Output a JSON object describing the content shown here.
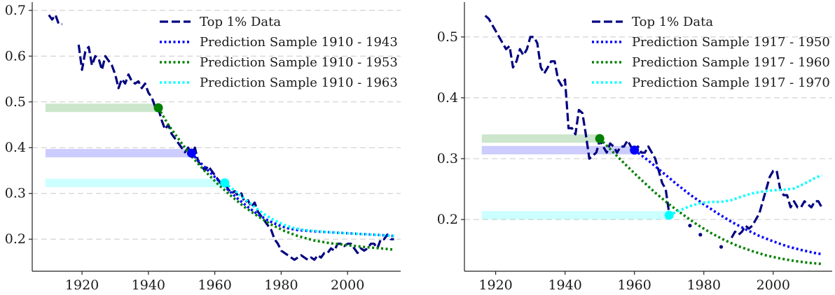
{
  "chart_data": [
    {
      "type": "line",
      "title": "",
      "xlabel": "",
      "ylabel": "",
      "xlim": [
        1905,
        2016
      ],
      "ylim": [
        0.13,
        0.715
      ],
      "xticks": [
        1920,
        1940,
        1960,
        1980,
        2000
      ],
      "yticks": [
        0.2,
        0.3,
        0.4,
        0.5,
        0.6,
        0.7
      ],
      "xtick_labels": [
        "1920",
        "1940",
        "1960",
        "1980",
        "2000"
      ],
      "ytick_labels": [
        "0.2",
        "0.3",
        "0.4",
        "0.5",
        "0.6",
        "0.7"
      ],
      "grid": "horizontal dashed",
      "legend_position": "top-right",
      "series": [
        {
          "name": "Top 1% Data",
          "style": "dashed",
          "color": "#000080",
          "x": [
            1910,
            1911,
            1912,
            1913,
            1914,
            null,
            1919,
            1920,
            1921,
            1922,
            1923,
            1924,
            1925,
            1926,
            1927,
            1928,
            1929,
            1930,
            1931,
            1932,
            1933,
            1934,
            1935,
            1936,
            1937,
            1938,
            1939,
            1940,
            1941,
            1942,
            1943,
            1944,
            1945,
            1946,
            1947,
            1948,
            1949,
            1950,
            1951,
            1952,
            1953,
            1954,
            1955,
            1956,
            1957,
            1958,
            1959,
            1960,
            1961,
            1962,
            1963,
            1964,
            1965,
            1966,
            1967,
            1968,
            1969,
            1970,
            1971,
            1972,
            1973,
            1974,
            1975,
            1976,
            1977,
            1978,
            1979,
            1980,
            1981,
            1982,
            1983,
            1984,
            1985,
            1986,
            1987,
            1988,
            1989,
            1990,
            1991,
            1992,
            1993,
            1994,
            1995,
            1996,
            1997,
            1998,
            1999,
            2000,
            2001,
            2002,
            2003,
            2004,
            2005,
            2006,
            2007,
            2008,
            2009,
            2010,
            2011,
            2012,
            2013,
            2014
          ],
          "y": [
            0.69,
            0.68,
            0.69,
            0.67,
            0.67,
            null,
            0.625,
            0.57,
            0.61,
            0.62,
            0.58,
            0.6,
            0.595,
            0.57,
            0.6,
            0.59,
            0.58,
            0.56,
            0.53,
            0.55,
            0.54,
            0.56,
            0.545,
            0.54,
            0.545,
            0.53,
            0.54,
            0.52,
            0.51,
            0.49,
            0.485,
            0.46,
            0.44,
            0.45,
            0.43,
            0.42,
            0.41,
            0.4,
            0.39,
            0.4,
            0.38,
            0.4,
            0.37,
            0.36,
            0.35,
            0.36,
            0.35,
            0.34,
            0.33,
            0.32,
            0.32,
            0.31,
            0.3,
            0.305,
            0.295,
            0.3,
            0.28,
            0.285,
            0.27,
            0.28,
            0.26,
            0.25,
            0.24,
            0.23,
            0.22,
            0.2,
            0.19,
            0.175,
            0.17,
            0.165,
            0.16,
            0.155,
            0.16,
            0.165,
            0.16,
            0.155,
            0.16,
            0.155,
            0.165,
            0.16,
            0.17,
            0.17,
            0.18,
            0.175,
            0.19,
            0.19,
            0.185,
            0.19,
            0.19,
            0.18,
            0.17,
            0.18,
            0.175,
            0.18,
            0.19,
            0.19,
            0.18,
            0.2,
            0.2,
            0.21,
            0.2,
            0.2
          ]
        },
        {
          "name": "Prediction Sample 1910 - 1943",
          "style": "dotted",
          "color": "#0000ff",
          "x": [
            1953,
            1955,
            1958,
            1961,
            1964,
            1967,
            1970,
            1973,
            1976,
            1979,
            1982,
            1985,
            1990,
            1995,
            2000,
            2005,
            2010,
            2014
          ],
          "y": [
            0.388,
            0.372,
            0.35,
            0.329,
            0.308,
            0.288,
            0.27,
            0.254,
            0.241,
            0.231,
            0.224,
            0.22,
            0.217,
            0.215,
            0.213,
            0.211,
            0.209,
            0.207
          ]
        },
        {
          "name": "Prediction Sample 1910 - 1953",
          "style": "dotted",
          "color": "#008000",
          "x": [
            1943,
            1946,
            1950,
            1953,
            1957,
            1961,
            1965,
            1969,
            1973,
            1977,
            1981,
            1985,
            1990,
            1995,
            2000,
            2005,
            2010,
            2014
          ],
          "y": [
            0.487,
            0.45,
            0.41,
            0.381,
            0.349,
            0.32,
            0.294,
            0.27,
            0.25,
            0.232,
            0.218,
            0.207,
            0.197,
            0.191,
            0.187,
            0.183,
            0.18,
            0.177
          ]
        },
        {
          "name": "Prediction Sample 1910 - 1963",
          "style": "dotted",
          "color": "#00ffff",
          "x": [
            1963,
            1966,
            1969,
            1972,
            1975,
            1978,
            1981,
            1984,
            1987,
            1990,
            1995,
            2000,
            2005,
            2010,
            2014
          ],
          "y": [
            0.323,
            0.306,
            0.288,
            0.27,
            0.254,
            0.241,
            0.231,
            0.224,
            0.22,
            0.218,
            0.215,
            0.213,
            0.211,
            0.209,
            0.207
          ]
        }
      ],
      "markers": [
        {
          "x": 1943,
          "y": 0.487,
          "color": "#008000"
        },
        {
          "x": 1953,
          "y": 0.388,
          "color": "#0000ff"
        },
        {
          "x": 1963,
          "y": 0.323,
          "color": "#00ffff"
        }
      ],
      "bands": [
        {
          "x_from": 1909,
          "x_to": 1943,
          "y": 0.487,
          "color": "#008000"
        },
        {
          "x_from": 1909,
          "x_to": 1953,
          "y": 0.388,
          "color": "#0000ff"
        },
        {
          "x_from": 1909,
          "x_to": 1963,
          "y": 0.323,
          "color": "#00ffff"
        }
      ]
    },
    {
      "type": "line",
      "title": "",
      "xlabel": "",
      "ylabel": "",
      "xlim": [
        1911,
        2017
      ],
      "ylim": [
        0.115,
        0.555
      ],
      "xticks": [
        1920,
        1940,
        1960,
        1980,
        2000
      ],
      "yticks": [
        0.2,
        0.3,
        0.4,
        0.5
      ],
      "xtick_labels": [
        "1920",
        "1940",
        "1960",
        "1980",
        "2000"
      ],
      "ytick_labels": [
        "0.2",
        "0.3",
        "0.4",
        "0.5"
      ],
      "grid": "horizontal dashed",
      "legend_position": "top-right",
      "series": [
        {
          "name": "Top 1% Data",
          "style": "dashed",
          "color": "#000080",
          "x": [
            1917,
            1918,
            1919,
            1920,
            1921,
            1922,
            1923,
            1924,
            1925,
            1926,
            1927,
            1928,
            1929,
            1930,
            1931,
            1932,
            1933,
            1934,
            1935,
            1936,
            1937,
            1938,
            1939,
            1940,
            1941,
            1942,
            1943,
            1944,
            1945,
            1946,
            1947,
            1948,
            1949,
            1950,
            1951,
            1952,
            1953,
            1954,
            1955,
            1956,
            1957,
            1958,
            1959,
            1960,
            1961,
            1962,
            1963,
            1964,
            1965,
            1966,
            1967,
            1968,
            1969,
            1970,
            null,
            1976,
            null,
            1979,
            null,
            1985,
            null,
            1988,
            1989,
            1990,
            1991,
            1992,
            1993,
            1994,
            1995,
            1996,
            1997,
            1998,
            1999,
            2000,
            2001,
            2002,
            2003,
            2004,
            2005,
            2006,
            2007,
            2008,
            2009,
            2010,
            2011,
            2012,
            2013,
            2014
          ],
          "y": [
            0.535,
            0.53,
            0.52,
            0.51,
            0.5,
            0.49,
            0.48,
            0.485,
            0.45,
            0.46,
            0.48,
            0.47,
            0.48,
            0.5,
            0.5,
            0.49,
            0.45,
            0.44,
            0.45,
            0.46,
            0.46,
            0.43,
            0.42,
            0.43,
            0.35,
            0.35,
            0.34,
            0.38,
            0.375,
            0.34,
            0.3,
            0.305,
            0.31,
            0.33,
            0.32,
            0.31,
            0.325,
            0.32,
            0.31,
            0.32,
            0.32,
            0.33,
            0.32,
            0.31,
            0.32,
            0.31,
            0.31,
            0.32,
            0.31,
            0.3,
            0.28,
            0.26,
            0.25,
            0.21,
            null,
            0.19,
            null,
            0.175,
            null,
            0.155,
            null,
            0.17,
            0.18,
            0.175,
            0.18,
            0.19,
            0.185,
            0.19,
            0.2,
            0.21,
            0.23,
            0.25,
            0.27,
            0.28,
            0.28,
            0.25,
            0.24,
            0.24,
            0.22,
            0.23,
            0.22,
            0.22,
            0.23,
            0.225,
            0.22,
            0.23,
            0.23,
            0.22
          ]
        },
        {
          "name": "Prediction Sample 1917 - 1950",
          "style": "dotted",
          "color": "#0000ff",
          "x": [
            1960,
            1964,
            1968,
            1972,
            1976,
            1980,
            1984,
            1988,
            1992,
            1996,
            2000,
            2004,
            2008,
            2012,
            2014
          ],
          "y": [
            0.314,
            0.297,
            0.278,
            0.259,
            0.241,
            0.225,
            0.21,
            0.196,
            0.184,
            0.173,
            0.164,
            0.156,
            0.15,
            0.145,
            0.143
          ]
        },
        {
          "name": "Prediction Sample 1917 - 1960",
          "style": "dotted",
          "color": "#008000",
          "x": [
            1950,
            1954,
            1958,
            1962,
            1966,
            1970,
            1974,
            1978,
            1982,
            1986,
            1990,
            1994,
            1998,
            2002,
            2006,
            2010,
            2014
          ],
          "y": [
            0.333,
            0.31,
            0.287,
            0.265,
            0.244,
            0.225,
            0.208,
            0.192,
            0.178,
            0.166,
            0.156,
            0.148,
            0.141,
            0.136,
            0.132,
            0.129,
            0.127
          ]
        },
        {
          "name": "Prediction Sample 1917 - 1970",
          "style": "dotted",
          "color": "#00ffff",
          "x": [
            1970,
            1973,
            1976,
            1979,
            1982,
            1985,
            1988,
            1991,
            1994,
            1997,
            2000,
            2003,
            2006,
            2009,
            2012,
            2014
          ],
          "y": [
            0.207,
            0.215,
            0.222,
            0.227,
            0.229,
            0.229,
            0.232,
            0.238,
            0.243,
            0.246,
            0.248,
            0.249,
            0.251,
            0.259,
            0.268,
            0.273
          ]
        }
      ],
      "markers": [
        {
          "x": 1950,
          "y": 0.333,
          "color": "#008000"
        },
        {
          "x": 1960,
          "y": 0.314,
          "color": "#0000ff"
        },
        {
          "x": 1970,
          "y": 0.207,
          "color": "#00ffff"
        }
      ],
      "bands": [
        {
          "x_from": 1916,
          "x_to": 1950,
          "y": 0.333,
          "color": "#008000"
        },
        {
          "x_from": 1916,
          "x_to": 1960,
          "y": 0.314,
          "color": "#0000ff"
        },
        {
          "x_from": 1916,
          "x_to": 1970,
          "y": 0.207,
          "color": "#00ffff"
        }
      ]
    }
  ]
}
